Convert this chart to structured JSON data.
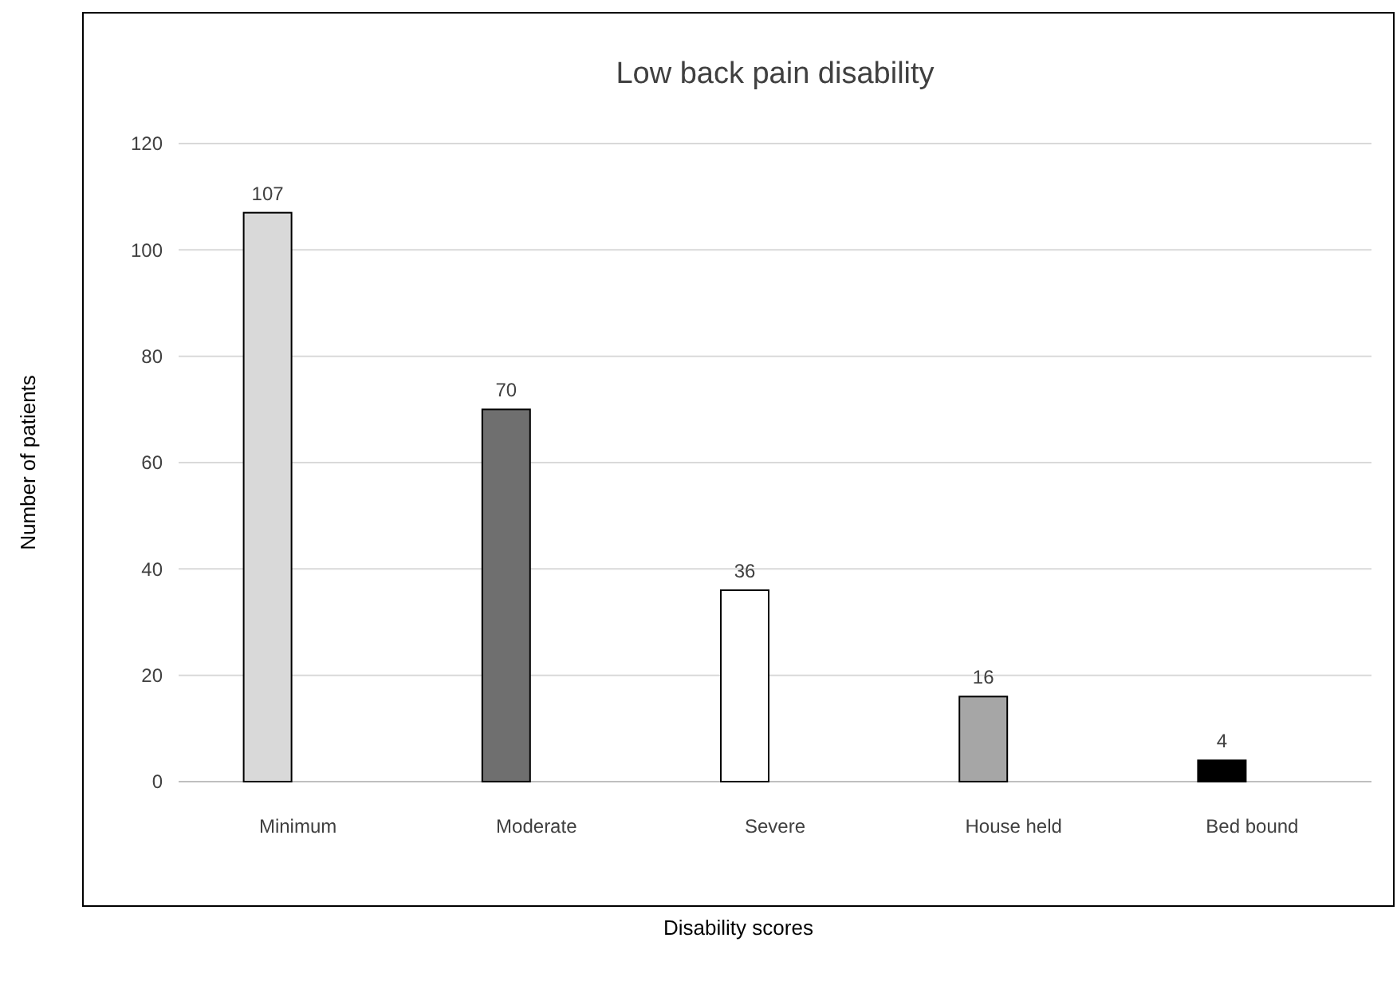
{
  "chart_data": {
    "type": "bar",
    "title": "Low back pain disability",
    "xlabel": "Disability scores",
    "ylabel": "Number of patients",
    "categories": [
      "Minimum",
      "Moderate",
      "Severe",
      "House held",
      "Bed bound"
    ],
    "values": [
      107,
      70,
      36,
      16,
      4
    ],
    "colors": [
      "#d9d9d9",
      "#6f6f6f",
      "#ffffff",
      "#a6a6a6",
      "#000000"
    ],
    "ylim": [
      0,
      120
    ],
    "yticks": [
      0,
      20,
      40,
      60,
      80,
      100,
      120
    ],
    "grid": "y",
    "data_labels": true
  }
}
